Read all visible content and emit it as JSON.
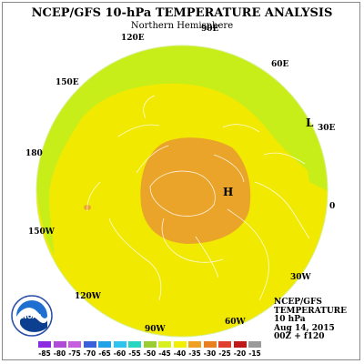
{
  "title": "NCEP/GFS 10-hPa TEMPERATURE ANALYSIS",
  "subtitle": "Northern Hemisphere",
  "longitude_labels": [
    {
      "id": "lon-90e",
      "text": "90E"
    },
    {
      "id": "lon-120e",
      "text": "120E"
    },
    {
      "id": "lon-60e",
      "text": "60E"
    },
    {
      "id": "lon-150e",
      "text": "150E"
    },
    {
      "id": "lon-30e",
      "text": "30E"
    },
    {
      "id": "lon-180",
      "text": "180"
    },
    {
      "id": "lon-0",
      "text": "0"
    },
    {
      "id": "lon-150w",
      "text": "150W"
    },
    {
      "id": "lon-30w",
      "text": "30W"
    },
    {
      "id": "lon-120w",
      "text": "120W"
    },
    {
      "id": "lon-60w",
      "text": "60W"
    },
    {
      "id": "lon-90w",
      "text": "90W"
    }
  ],
  "markers": {
    "low": "L",
    "high": "H"
  },
  "info": {
    "line1": "NCEP/GFS",
    "line2": "TEMPERATURE",
    "line3": "10 hPa",
    "line4": "Aug 14, 2015",
    "line5": "00Z + f120"
  },
  "logo_text": "NOAA",
  "legend": {
    "ticks": [
      "-85",
      "-80",
      "-75",
      "-70",
      "-65",
      "-60",
      "-55",
      "-50",
      "-45",
      "-40",
      "-35",
      "-30",
      "-25",
      "-20",
      "-15"
    ],
    "colors": [
      "#8a2be2",
      "#b04ad8",
      "#c65ee0",
      "#3a5fd8",
      "#1fa2e6",
      "#2ec4ee",
      "#27d6c0",
      "#9acd32",
      "#d9f020",
      "#f2f000",
      "#f0a020",
      "#e88020",
      "#e04030",
      "#c01818",
      "#9a9a9a"
    ]
  },
  "colors": {
    "outer_band": "#c8ee1a",
    "main_field": "#f1e900",
    "warm_core": "#eba42a",
    "coast": "#ffffff"
  }
}
